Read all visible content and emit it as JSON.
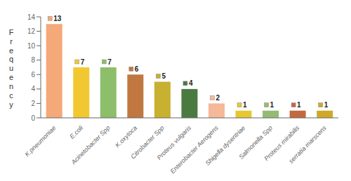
{
  "chart_data": {
    "type": "bar",
    "categories": [
      "K.pneumoniae",
      "E.coli",
      "Acinetobacter Spp",
      "K.oxytoca",
      "Citrobacter Spp",
      "Proteus vulgaris",
      "Enterobacter Aerogens",
      "Shigella dysentriae",
      "Salmonella Spp",
      "Proteus mirabilis",
      "serratia marscens"
    ],
    "values": [
      13,
      7,
      7,
      6,
      5,
      4,
      2,
      1,
      1,
      1,
      1
    ],
    "colors": [
      "#F5A878",
      "#F2C832",
      "#8DBE6A",
      "#C07840",
      "#C8B030",
      "#4A7A40",
      "#F5B898",
      "#E8C830",
      "#94BB74",
      "#C46840",
      "#D0A828"
    ],
    "y_label": "Frequency",
    "ylim": [
      0,
      14
    ],
    "yticks": [
      0,
      2,
      4,
      6,
      8,
      10,
      12,
      14
    ],
    "grid": false,
    "data_labels": true
  }
}
